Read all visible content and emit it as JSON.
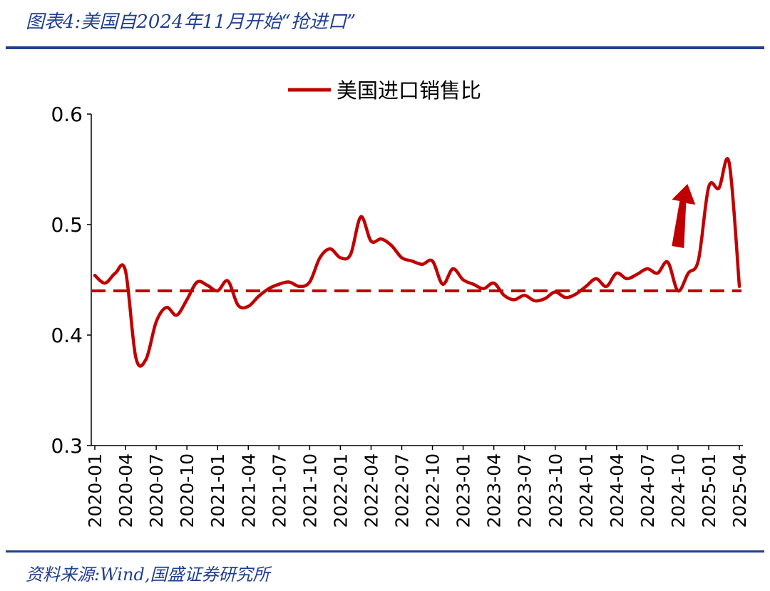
{
  "header": {
    "title": "图表4:美国自2024年11月开始“抢进口”"
  },
  "footer": {
    "source": "资料来源:Wind,国盛证券研究所"
  },
  "colors": {
    "line": "#c00000",
    "brand": "#1f3f8f",
    "arrow": "#c00000"
  },
  "chart_data": {
    "type": "line",
    "title": "",
    "xlabel": "",
    "ylabel": "",
    "ylim": [
      0.3,
      0.6
    ],
    "yticks": [
      "0.6",
      "0.5",
      "0.4",
      "0.3"
    ],
    "legend": {
      "placement": "top-center",
      "label": "美国进口销售比"
    },
    "reference_line": {
      "value": 0.44,
      "style": "dashed"
    },
    "annotation": {
      "type": "arrow",
      "direction": "up",
      "near": "2024-11"
    },
    "xticks": [
      "2020-01",
      "2020-04",
      "2020-07",
      "2020-10",
      "2021-01",
      "2021-04",
      "2021-07",
      "2021-10",
      "2022-01",
      "2022-04",
      "2022-07",
      "2022-10",
      "2023-01",
      "2023-04",
      "2023-07",
      "2023-10",
      "2024-01",
      "2024-04",
      "2024-07",
      "2024-10",
      "2025-01",
      "2025-04"
    ],
    "series": [
      {
        "name": "美国进口销售比",
        "x": [
          "2020-01",
          "2020-02",
          "2020-03",
          "2020-04",
          "2020-05",
          "2020-06",
          "2020-07",
          "2020-08",
          "2020-09",
          "2020-10",
          "2020-11",
          "2020-12",
          "2021-01",
          "2021-02",
          "2021-03",
          "2021-04",
          "2021-05",
          "2021-06",
          "2021-07",
          "2021-08",
          "2021-09",
          "2021-10",
          "2021-11",
          "2021-12",
          "2022-01",
          "2022-02",
          "2022-03",
          "2022-04",
          "2022-05",
          "2022-06",
          "2022-07",
          "2022-08",
          "2022-09",
          "2022-10",
          "2022-11",
          "2022-12",
          "2023-01",
          "2023-02",
          "2023-03",
          "2023-04",
          "2023-05",
          "2023-06",
          "2023-07",
          "2023-08",
          "2023-09",
          "2023-10",
          "2023-11",
          "2023-12",
          "2024-01",
          "2024-02",
          "2024-03",
          "2024-04",
          "2024-05",
          "2024-06",
          "2024-07",
          "2024-08",
          "2024-09",
          "2024-10",
          "2024-11",
          "2024-12",
          "2025-01",
          "2025-02",
          "2025-03",
          "2025-04"
        ],
        "values": [
          0.454,
          0.447,
          0.456,
          0.458,
          0.38,
          0.378,
          0.412,
          0.425,
          0.418,
          0.432,
          0.448,
          0.445,
          0.44,
          0.449,
          0.427,
          0.426,
          0.435,
          0.442,
          0.446,
          0.448,
          0.444,
          0.448,
          0.47,
          0.478,
          0.47,
          0.473,
          0.507,
          0.485,
          0.487,
          0.481,
          0.47,
          0.467,
          0.464,
          0.467,
          0.446,
          0.46,
          0.45,
          0.446,
          0.442,
          0.447,
          0.436,
          0.432,
          0.436,
          0.431,
          0.433,
          0.439,
          0.434,
          0.437,
          0.444,
          0.451,
          0.444,
          0.456,
          0.451,
          0.455,
          0.46,
          0.456,
          0.466,
          0.44,
          0.456,
          0.468,
          0.534,
          0.533,
          0.556,
          0.444
        ]
      }
    ]
  }
}
